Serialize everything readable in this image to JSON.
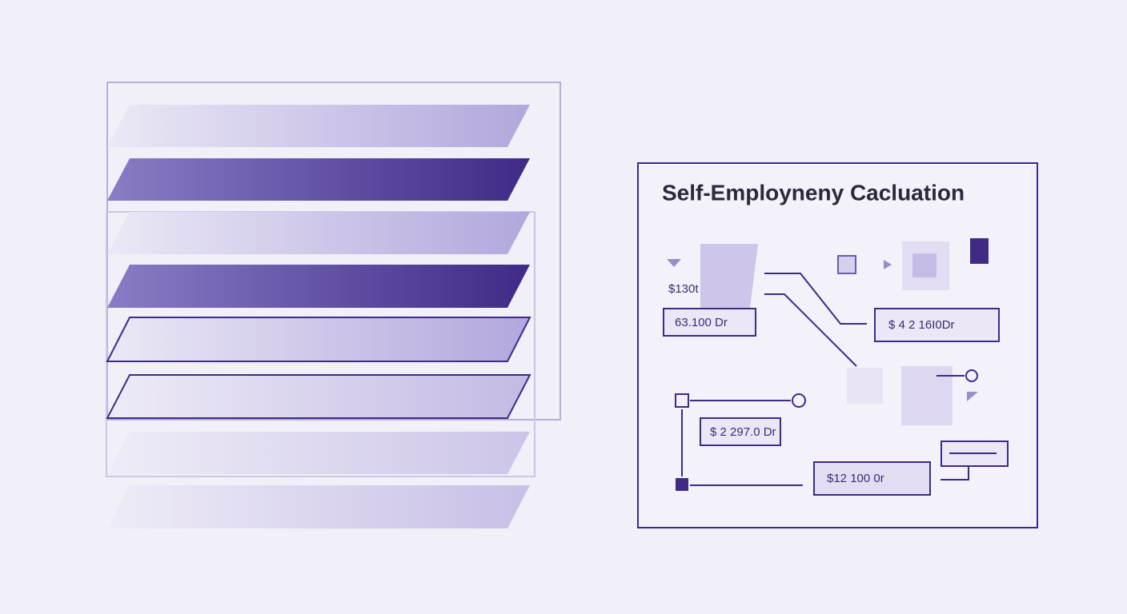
{
  "panel": {
    "title": "Self-Employneny Cacluation",
    "labels": [
      "$130t",
      "63.100 Dr",
      "$ 4 2 16I0Dr",
      "$ 2 297.0 Dr",
      "$12 100 0r"
    ]
  }
}
